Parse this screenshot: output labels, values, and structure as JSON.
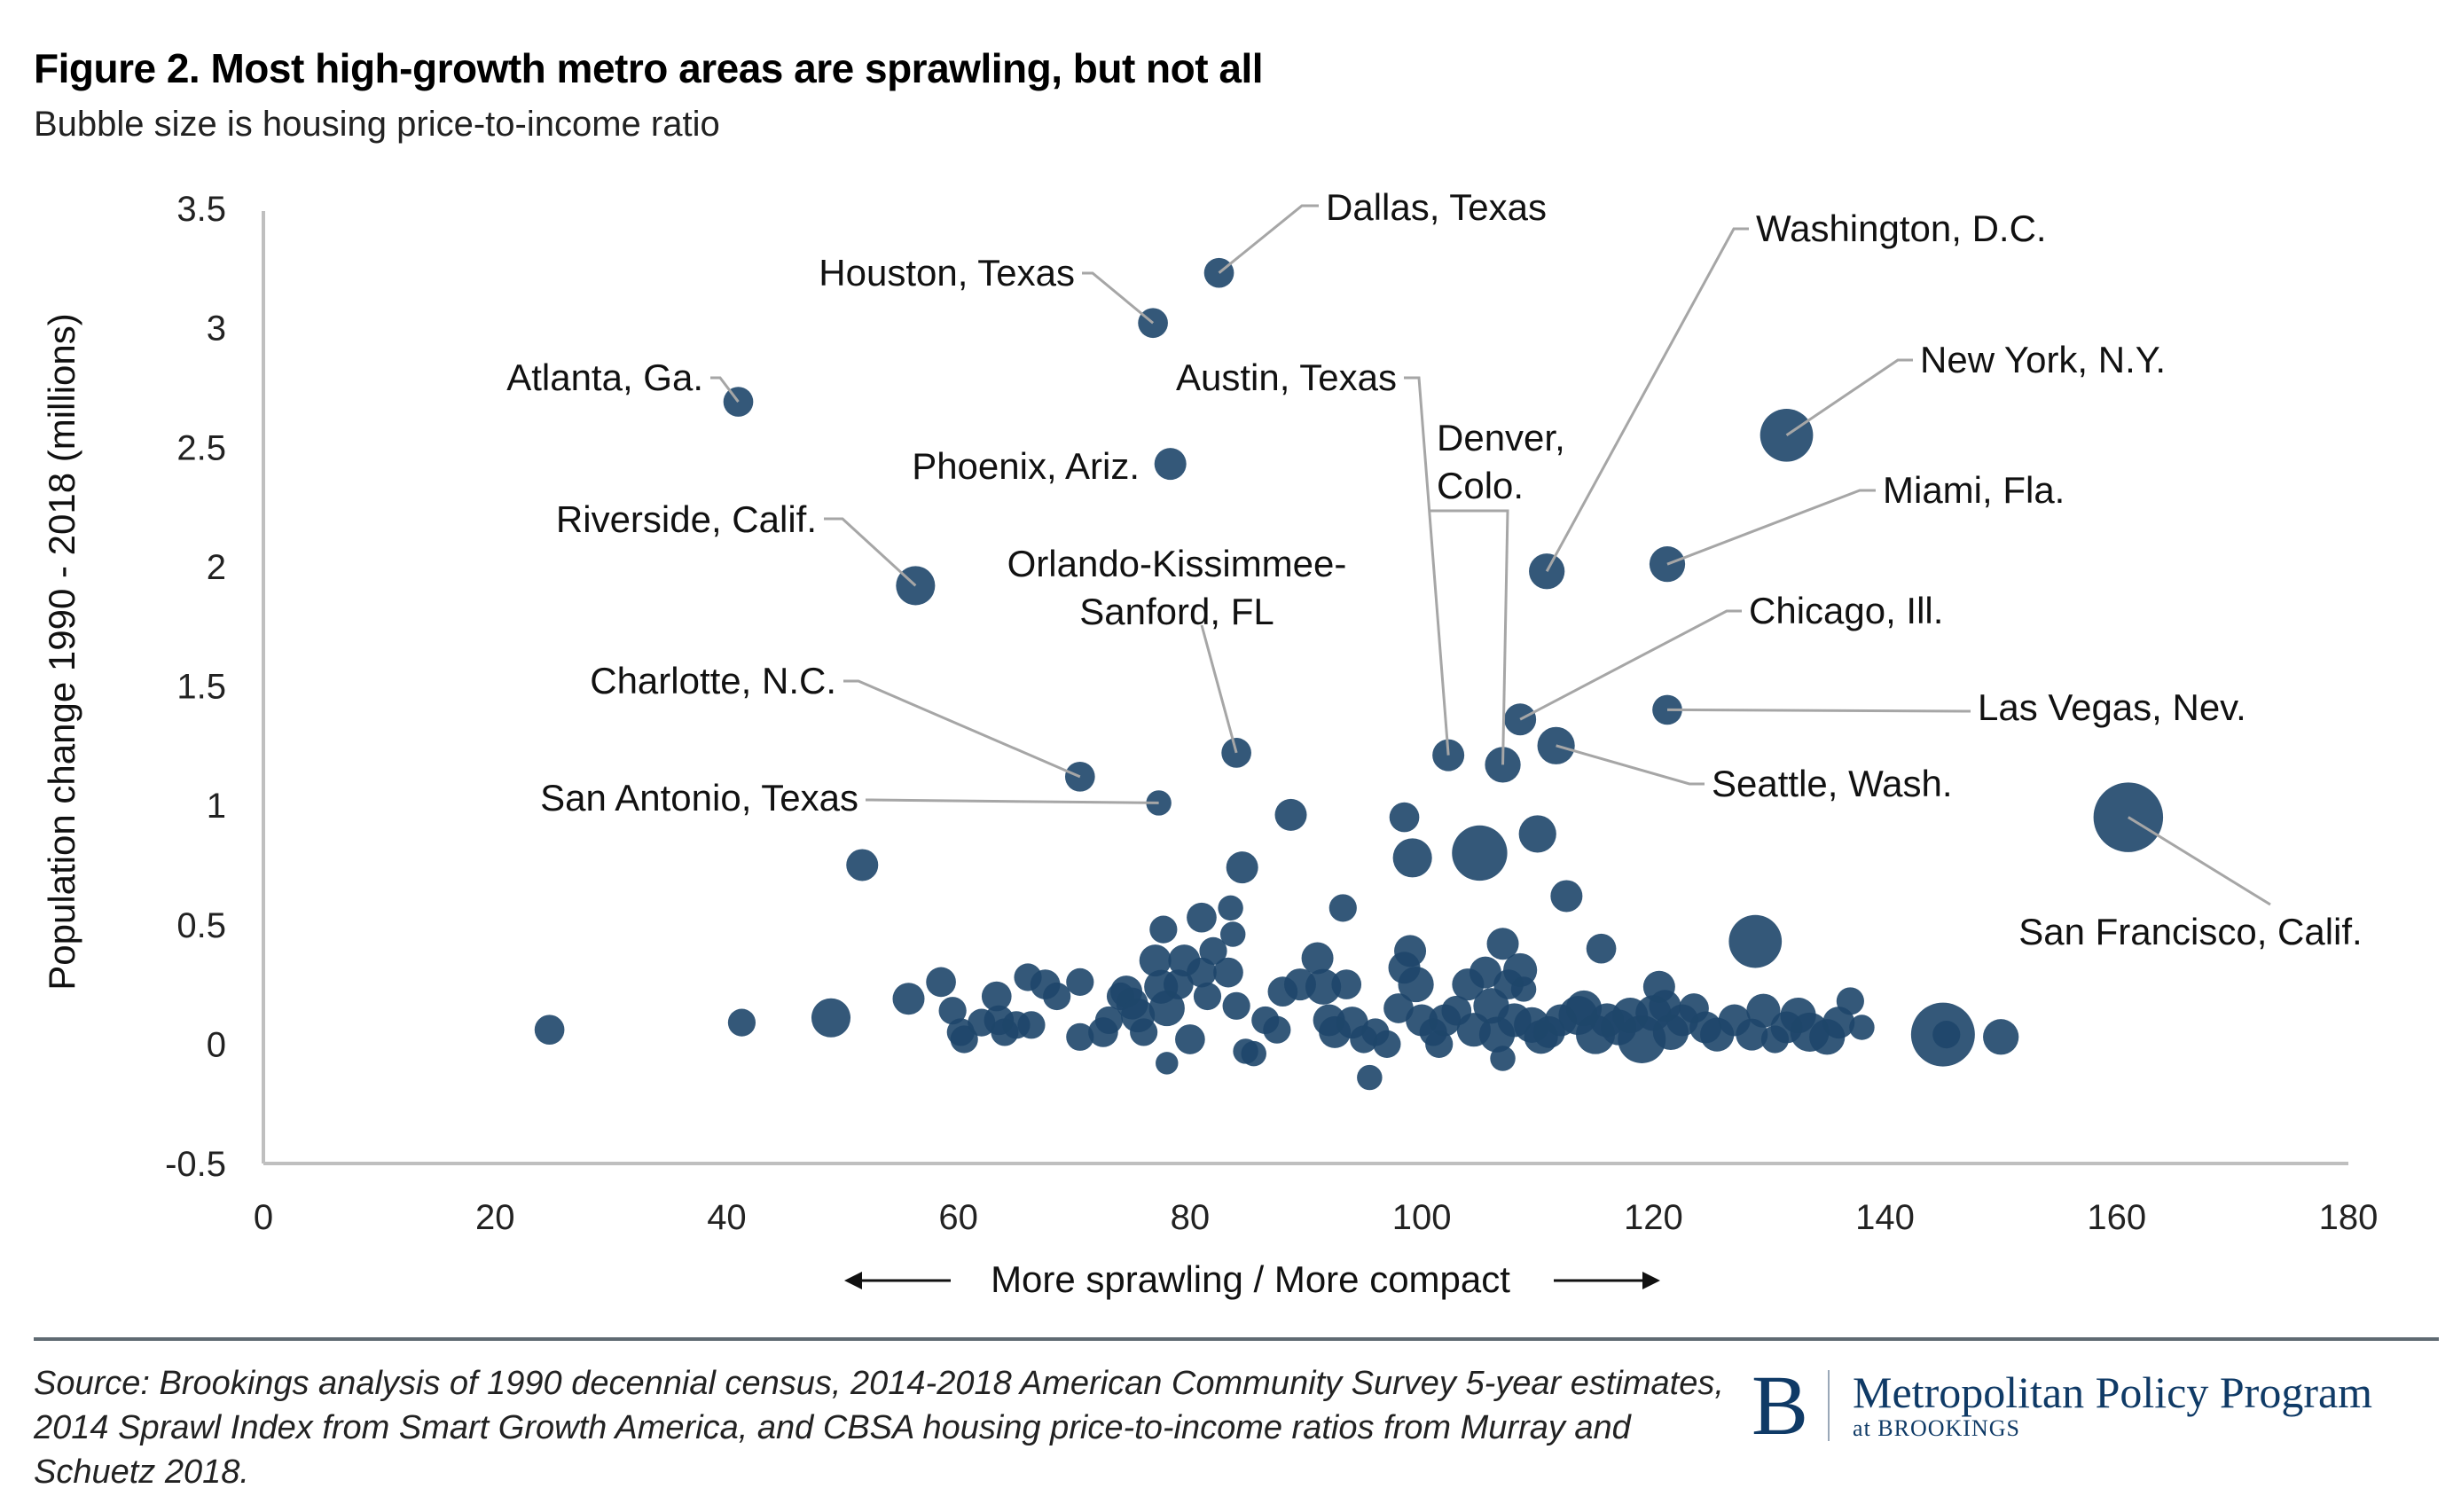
{
  "header": {
    "title": "Figure 2. Most high-growth metro areas are sprawling, but not all",
    "subtitle": "Bubble size is housing price-to-income ratio"
  },
  "footer": {
    "source": "Source: Brookings analysis of 1990 decennial census, 2014-2018 American Community Survey 5-year estimates, 2014 Sprawl Index from Smart Growth America, and CBSA housing price-to-income ratios from Murray and Schuetz 2018.",
    "logo_letter": "B",
    "logo_name": "Metropolitan Policy Program",
    "logo_sub": "at BROOKINGS"
  },
  "colors": {
    "bubble": "#1e466a",
    "leader": "#a6a6a6",
    "axis": "#bfbfbf",
    "brand": "#0f3a66"
  },
  "chart_data": {
    "type": "scatter",
    "title": "Figure 2. Most high-growth metro areas are sprawling, but not all",
    "subtitle": "Bubble size is housing price-to-income ratio",
    "xlabel": "More sprawling / More compact",
    "ylabel": "Population change 1990 - 2018 (millions)",
    "xlim": [
      0,
      180
    ],
    "ylim": [
      -0.5,
      3.5
    ],
    "xticks": [
      "0",
      "20",
      "40",
      "60",
      "80",
      "100",
      "120",
      "140",
      "160",
      "180"
    ],
    "yticks": [
      "3.5",
      "3",
      "2.5",
      "2",
      "1.5",
      "1",
      "0.5",
      "0",
      "-0.5"
    ],
    "grid": false,
    "size_variable": "housing price-to-income ratio (relative)",
    "labeled_points": [
      {
        "name": "Dallas, Texas",
        "x": 82.5,
        "y": 3.23,
        "size": 3.5
      },
      {
        "name": "Houston, Texas",
        "x": 76.8,
        "y": 3.02,
        "size": 3.5
      },
      {
        "name": "Atlanta, Ga.",
        "x": 41,
        "y": 2.69,
        "size": 3.5
      },
      {
        "name": "Phoenix, Ariz.",
        "x": 78.3,
        "y": 2.43,
        "size": 4
      },
      {
        "name": "Riverside, Calif.",
        "x": 56.3,
        "y": 1.92,
        "size": 6
      },
      {
        "name": "Washington, D.C.",
        "x": 110.8,
        "y": 1.98,
        "size": 5
      },
      {
        "name": "New York, N.Y.",
        "x": 131.5,
        "y": 2.55,
        "size": 11
      },
      {
        "name": "Miami, Fla.",
        "x": 121.2,
        "y": 2.01,
        "size": 5
      },
      {
        "name": "Chicago, Ill.",
        "x": 108.5,
        "y": 1.36,
        "size": 4
      },
      {
        "name": "Las Vegas, Nev.",
        "x": 121.2,
        "y": 1.4,
        "size": 3.5
      },
      {
        "name": "Seattle, Wash.",
        "x": 111.6,
        "y": 1.25,
        "size": 5.5
      },
      {
        "name": "Denver, Colo.",
        "x": 107,
        "y": 1.17,
        "size": 5
      },
      {
        "name": "Austin, Texas",
        "x": 102.3,
        "y": 1.21,
        "size": 4
      },
      {
        "name": "Orlando-Kissimmee-Sanford, FL",
        "x": 84,
        "y": 1.22,
        "size": 3.5
      },
      {
        "name": "Charlotte, N.C.",
        "x": 70.5,
        "y": 1.12,
        "size": 3.5
      },
      {
        "name": "San Antonio, Texas",
        "x": 77.3,
        "y": 1.01,
        "size": 2.5
      },
      {
        "name": "San Francisco, Calif.",
        "x": 161,
        "y": 0.95,
        "size": 19
      }
    ],
    "other_points": [
      {
        "x": 24.7,
        "y": 0.06,
        "size": 3.5
      },
      {
        "x": 41.3,
        "y": 0.09,
        "size": 3
      },
      {
        "x": 49,
        "y": 0.11,
        "size": 6
      },
      {
        "x": 51.7,
        "y": 0.75,
        "size": 4
      },
      {
        "x": 55.7,
        "y": 0.19,
        "size": 4
      },
      {
        "x": 58.5,
        "y": 0.26,
        "size": 3.5
      },
      {
        "x": 59.5,
        "y": 0.14,
        "size": 3
      },
      {
        "x": 60.2,
        "y": 0.05,
        "size": 3
      },
      {
        "x": 60.5,
        "y": 0.02,
        "size": 3
      },
      {
        "x": 62,
        "y": 0.09,
        "size": 3
      },
      {
        "x": 63.3,
        "y": 0.2,
        "size": 3.5
      },
      {
        "x": 63.5,
        "y": 0.1,
        "size": 3.5
      },
      {
        "x": 64,
        "y": 0.05,
        "size": 3
      },
      {
        "x": 65,
        "y": 0.08,
        "size": 3
      },
      {
        "x": 66,
        "y": 0.28,
        "size": 3
      },
      {
        "x": 66.3,
        "y": 0.08,
        "size": 3
      },
      {
        "x": 67.5,
        "y": 0.25,
        "size": 3.5
      },
      {
        "x": 68.5,
        "y": 0.2,
        "size": 3
      },
      {
        "x": 70.5,
        "y": 0.26,
        "size": 3
      },
      {
        "x": 70.5,
        "y": 0.03,
        "size": 3
      },
      {
        "x": 72.5,
        "y": 0.05,
        "size": 3.5
      },
      {
        "x": 73,
        "y": 0.1,
        "size": 3
      },
      {
        "x": 74,
        "y": 0.2,
        "size": 3
      },
      {
        "x": 74.5,
        "y": 0.22,
        "size": 4
      },
      {
        "x": 75,
        "y": 0.17,
        "size": 4
      },
      {
        "x": 75.5,
        "y": 0.12,
        "size": 4.5
      },
      {
        "x": 76,
        "y": 0.05,
        "size": 3
      },
      {
        "x": 77,
        "y": 0.35,
        "size": 4
      },
      {
        "x": 77.5,
        "y": 0.24,
        "size": 4.5
      },
      {
        "x": 78,
        "y": 0.15,
        "size": 5
      },
      {
        "x": 77.7,
        "y": 0.48,
        "size": 3
      },
      {
        "x": 78,
        "y": -0.08,
        "size": 2
      },
      {
        "x": 79,
        "y": 0.25,
        "size": 3.5
      },
      {
        "x": 79.5,
        "y": 0.35,
        "size": 4
      },
      {
        "x": 80,
        "y": 0.02,
        "size": 3.5
      },
      {
        "x": 81,
        "y": 0.3,
        "size": 3.5
      },
      {
        "x": 81.5,
        "y": 0.2,
        "size": 3
      },
      {
        "x": 81,
        "y": 0.53,
        "size": 3.5
      },
      {
        "x": 82,
        "y": 0.39,
        "size": 3
      },
      {
        "x": 83.5,
        "y": 0.57,
        "size": 2.5
      },
      {
        "x": 83.7,
        "y": 0.46,
        "size": 2.5
      },
      {
        "x": 83.3,
        "y": 0.3,
        "size": 3.5
      },
      {
        "x": 84,
        "y": 0.16,
        "size": 3
      },
      {
        "x": 84.5,
        "y": 0.74,
        "size": 4
      },
      {
        "x": 84.8,
        "y": -0.03,
        "size": 2.5
      },
      {
        "x": 85.5,
        "y": -0.04,
        "size": 2.5
      },
      {
        "x": 86.5,
        "y": 0.1,
        "size": 3
      },
      {
        "x": 87.5,
        "y": 0.06,
        "size": 3
      },
      {
        "x": 88,
        "y": 0.22,
        "size": 3.5
      },
      {
        "x": 88.7,
        "y": 0.96,
        "size": 4
      },
      {
        "x": 89.5,
        "y": 0.25,
        "size": 4
      },
      {
        "x": 91,
        "y": 0.36,
        "size": 4
      },
      {
        "x": 91.5,
        "y": 0.24,
        "size": 5
      },
      {
        "x": 92,
        "y": 0.1,
        "size": 4
      },
      {
        "x": 92.5,
        "y": 0.05,
        "size": 4
      },
      {
        "x": 93.2,
        "y": 0.57,
        "size": 3
      },
      {
        "x": 93.5,
        "y": 0.25,
        "size": 3.5
      },
      {
        "x": 94,
        "y": 0.09,
        "size": 4
      },
      {
        "x": 95,
        "y": 0.02,
        "size": 3
      },
      {
        "x": 95.5,
        "y": -0.14,
        "size": 2.5
      },
      {
        "x": 96,
        "y": 0.05,
        "size": 3
      },
      {
        "x": 97,
        "y": 0.0,
        "size": 3
      },
      {
        "x": 98,
        "y": 0.15,
        "size": 3.5
      },
      {
        "x": 98.5,
        "y": 0.32,
        "size": 4
      },
      {
        "x": 98.5,
        "y": 0.95,
        "size": 3.5
      },
      {
        "x": 99.2,
        "y": 0.78,
        "size": 6
      },
      {
        "x": 99,
        "y": 0.39,
        "size": 4
      },
      {
        "x": 99.5,
        "y": 0.25,
        "size": 5
      },
      {
        "x": 100,
        "y": 0.1,
        "size": 4
      },
      {
        "x": 101,
        "y": 0.05,
        "size": 3
      },
      {
        "x": 101.5,
        "y": 0.0,
        "size": 3
      },
      {
        "x": 102,
        "y": 0.1,
        "size": 4
      },
      {
        "x": 103,
        "y": 0.14,
        "size": 3.5
      },
      {
        "x": 104,
        "y": 0.25,
        "size": 4
      },
      {
        "x": 104.5,
        "y": 0.06,
        "size": 4.5
      },
      {
        "x": 105,
        "y": 0.8,
        "size": 12
      },
      {
        "x": 105.5,
        "y": 0.3,
        "size": 4
      },
      {
        "x": 106,
        "y": 0.16,
        "size": 5
      },
      {
        "x": 106.5,
        "y": 0.04,
        "size": 5
      },
      {
        "x": 107,
        "y": -0.06,
        "size": 2.5
      },
      {
        "x": 107,
        "y": 0.42,
        "size": 4
      },
      {
        "x": 107.5,
        "y": 0.25,
        "size": 3.5
      },
      {
        "x": 108,
        "y": 0.1,
        "size": 4.5
      },
      {
        "x": 108.5,
        "y": 0.31,
        "size": 4.5
      },
      {
        "x": 108.8,
        "y": 0.23,
        "size": 2.5
      },
      {
        "x": 109.5,
        "y": 0.08,
        "size": 5
      },
      {
        "x": 110,
        "y": 0.88,
        "size": 5.5
      },
      {
        "x": 110.3,
        "y": 0.03,
        "size": 4.5
      },
      {
        "x": 111,
        "y": 0.05,
        "size": 4
      },
      {
        "x": 112,
        "y": 0.1,
        "size": 4
      },
      {
        "x": 112.5,
        "y": 0.62,
        "size": 4
      },
      {
        "x": 113.5,
        "y": 0.12,
        "size": 6
      },
      {
        "x": 114,
        "y": 0.15,
        "size": 5
      },
      {
        "x": 115,
        "y": 0.04,
        "size": 6
      },
      {
        "x": 115.5,
        "y": 0.4,
        "size": 3.5
      },
      {
        "x": 116,
        "y": 0.1,
        "size": 4.5
      },
      {
        "x": 117,
        "y": 0.07,
        "size": 5
      },
      {
        "x": 118,
        "y": 0.12,
        "size": 5
      },
      {
        "x": 119,
        "y": 0.02,
        "size": 9
      },
      {
        "x": 120,
        "y": 0.13,
        "size": 5
      },
      {
        "x": 120.5,
        "y": 0.24,
        "size": 4
      },
      {
        "x": 121,
        "y": 0.16,
        "size": 4
      },
      {
        "x": 121.5,
        "y": 0.05,
        "size": 5
      },
      {
        "x": 122.5,
        "y": 0.1,
        "size": 4
      },
      {
        "x": 123.5,
        "y": 0.15,
        "size": 3.5
      },
      {
        "x": 124.5,
        "y": 0.07,
        "size": 4
      },
      {
        "x": 125.5,
        "y": 0.04,
        "size": 4.5
      },
      {
        "x": 127,
        "y": 0.1,
        "size": 4
      },
      {
        "x": 128.8,
        "y": 0.43,
        "size": 11
      },
      {
        "x": 128.5,
        "y": 0.04,
        "size": 4
      },
      {
        "x": 129.5,
        "y": 0.14,
        "size": 4.5
      },
      {
        "x": 130.5,
        "y": 0.02,
        "size": 3
      },
      {
        "x": 131.5,
        "y": 0.07,
        "size": 4
      },
      {
        "x": 132.5,
        "y": 0.12,
        "size": 5
      },
      {
        "x": 133.5,
        "y": 0.05,
        "size": 6
      },
      {
        "x": 135,
        "y": 0.03,
        "size": 5
      },
      {
        "x": 136,
        "y": 0.09,
        "size": 4
      },
      {
        "x": 137,
        "y": 0.18,
        "size": 3
      },
      {
        "x": 138,
        "y": 0.07,
        "size": 2.5
      },
      {
        "x": 145,
        "y": 0.04,
        "size": 16
      },
      {
        "x": 145.3,
        "y": 0.04,
        "size": 3
      },
      {
        "x": 150,
        "y": 0.03,
        "size": 5
      }
    ]
  }
}
